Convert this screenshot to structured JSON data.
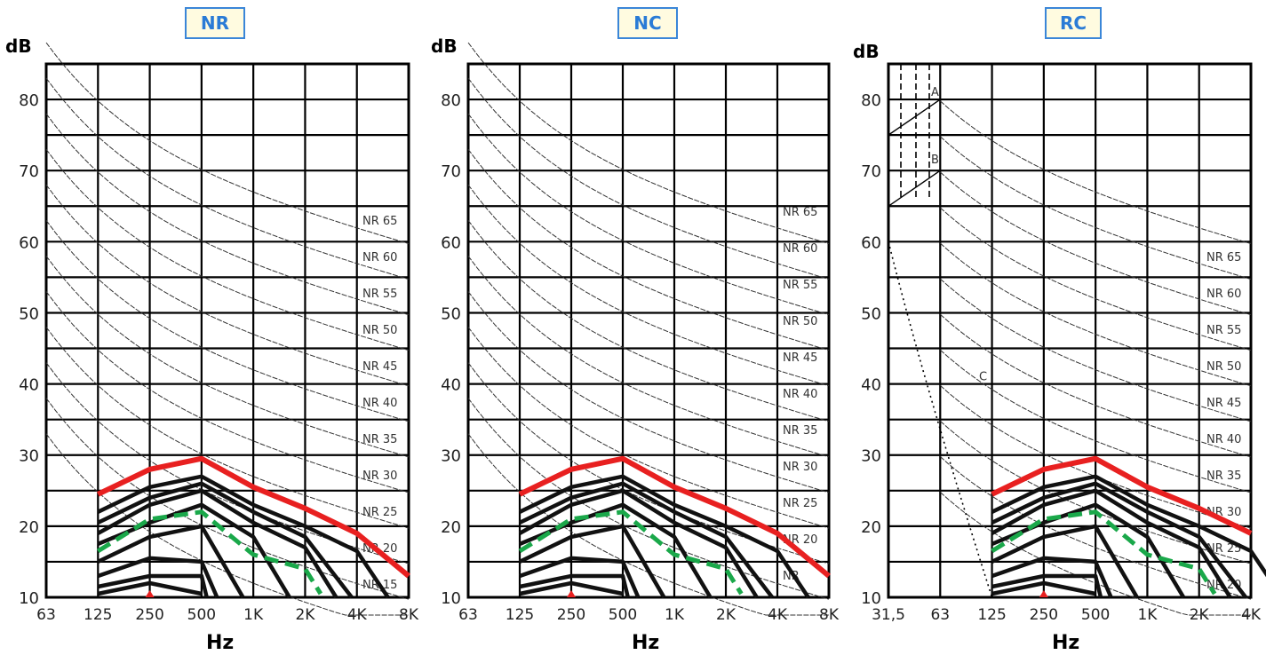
{
  "chart_data": [
    {
      "type": "line",
      "title": "NR",
      "ylabel": "dB",
      "xlabel": "Hz",
      "x_ticks": [
        "63",
        "125",
        "250",
        "500",
        "1K",
        "2K",
        "4K",
        "8K"
      ],
      "y_ticks": [
        "10",
        "20",
        "30",
        "40",
        "50",
        "60",
        "70",
        "80"
      ],
      "ylim": [
        10,
        85
      ],
      "curve_labels": [
        "NR 65",
        "NR 60",
        "NR 55",
        "NR 50",
        "NR 45",
        "NR 40",
        "NR 35",
        "NR 30",
        "NR 25",
        "NR 20",
        "NR 15"
      ],
      "red_curve": {
        "color": "#e82020",
        "points": [
          [
            1,
            24.5
          ],
          [
            2,
            28
          ],
          [
            3,
            29.5
          ],
          [
            4,
            25.5
          ],
          [
            5,
            22.5
          ],
          [
            6,
            19
          ],
          [
            7,
            13
          ]
        ]
      },
      "green_curve": {
        "color": "#1aa84a",
        "points": [
          [
            1,
            16.5
          ],
          [
            2,
            21
          ],
          [
            3,
            22
          ],
          [
            4,
            16
          ],
          [
            5,
            14
          ],
          [
            5.3,
            10.5
          ]
        ]
      }
    },
    {
      "type": "line",
      "title": "NC",
      "ylabel": "dB",
      "xlabel": "Hz",
      "x_ticks": [
        "63",
        "125",
        "250",
        "500",
        "1K",
        "2K",
        "4K",
        "8K"
      ],
      "y_ticks": [
        "10",
        "20",
        "30",
        "40",
        "50",
        "60",
        "70",
        "80"
      ],
      "ylim": [
        10,
        85
      ],
      "curve_labels": [
        "NR 65",
        "NR 60",
        "NR 55",
        "NR 50",
        "NR 45",
        "NR 40",
        "NR 35",
        "NR 30",
        "NR 25",
        "NR 20",
        "NR"
      ],
      "red_curve": {
        "color": "#e82020",
        "points": [
          [
            1,
            24.5
          ],
          [
            2,
            28
          ],
          [
            3,
            29.5
          ],
          [
            4,
            25.5
          ],
          [
            5,
            22.5
          ],
          [
            6,
            19
          ],
          [
            7,
            13
          ]
        ]
      },
      "green_curve": {
        "color": "#1aa84a",
        "points": [
          [
            1,
            16.5
          ],
          [
            2,
            21
          ],
          [
            3,
            22
          ],
          [
            4,
            16
          ],
          [
            5,
            14
          ],
          [
            5.3,
            10.5
          ]
        ]
      }
    },
    {
      "type": "line",
      "title": "RC",
      "ylabel": "dB",
      "xlabel": "Hz",
      "x_ticks": [
        "31,5",
        "63",
        "125",
        "250",
        "500",
        "1K",
        "2K",
        "4K"
      ],
      "y_ticks": [
        "10",
        "20",
        "30",
        "40",
        "50",
        "60",
        "70",
        "80"
      ],
      "ylim": [
        10,
        85
      ],
      "curve_labels": [
        "NR 65",
        "NR 60",
        "NR 55",
        "NR 50",
        "NR 45",
        "NR 40",
        "NR 35",
        "NR 30",
        "NR 25",
        "NR 20"
      ],
      "region_labels": [
        "A",
        "B",
        "C"
      ],
      "red_curve": {
        "color": "#e82020",
        "points": [
          [
            2,
            24.5
          ],
          [
            3,
            28
          ],
          [
            4,
            29.5
          ],
          [
            5,
            25.5
          ],
          [
            6,
            22.5
          ],
          [
            7,
            19
          ]
        ]
      },
      "green_curve": {
        "color": "#1aa84a",
        "points": [
          [
            2,
            16.5
          ],
          [
            3,
            21
          ],
          [
            4,
            22
          ],
          [
            5,
            16
          ],
          [
            6,
            14
          ],
          [
            6.3,
            10.5
          ]
        ]
      }
    }
  ]
}
